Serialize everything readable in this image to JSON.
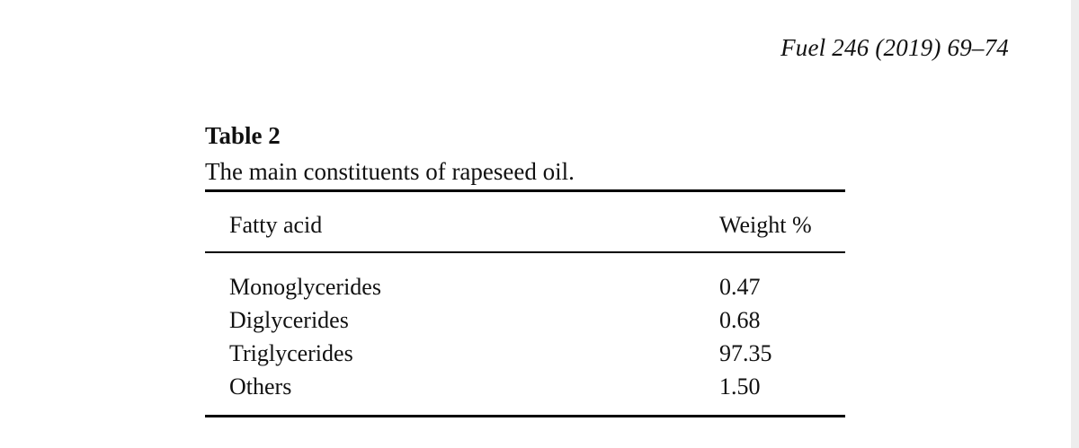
{
  "journal_header": "Fuel 246 (2019) 69–74",
  "table": {
    "label": "Table 2",
    "caption": "The main constituents of rapeseed oil.",
    "columns": {
      "fatty_acid": "Fatty acid",
      "weight": "Weight %"
    },
    "rows": [
      {
        "fatty_acid": "Monoglycerides",
        "weight": "0.47"
      },
      {
        "fatty_acid": "Diglycerides",
        "weight": "0.68"
      },
      {
        "fatty_acid": "Triglycerides",
        "weight": "97.35"
      },
      {
        "fatty_acid": "Others",
        "weight": "1.50"
      }
    ]
  },
  "colors": {
    "background": "#ffffff",
    "text": "#111111",
    "rule": "#000000",
    "page_edge": "#ededed"
  }
}
